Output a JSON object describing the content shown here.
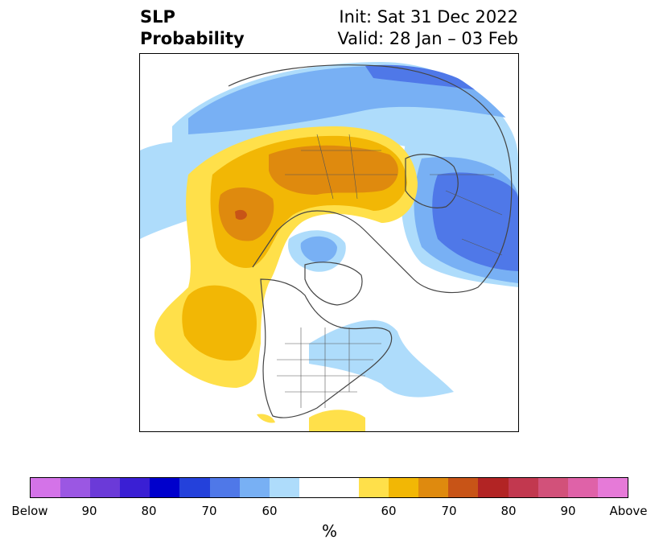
{
  "header": {
    "title_line1": "SLP",
    "title_line2": "Probability",
    "init": "Init: Sat 31 Dec 2022",
    "valid": "Valid: 28 Jan – 03 Feb"
  },
  "map": {
    "projection": "north-polar-stereographic",
    "features": [
      "coastlines",
      "country-borders",
      "state-borders"
    ]
  },
  "colorbar": {
    "colors": [
      "#d473e8",
      "#9b57e3",
      "#6b3ad8",
      "#3a1fd4",
      "#0000cc",
      "#2441db",
      "#4f78e8",
      "#78b0f4",
      "#aedcfb",
      "#ffffff",
      "#ffe04a",
      "#f2b705",
      "#df8a0e",
      "#c85417",
      "#b22424",
      "#c2384f",
      "#d2517a",
      "#df62a8",
      "#e67ad8"
    ],
    "tick_labels": [
      "Below",
      "90",
      "80",
      "70",
      "60",
      "60",
      "70",
      "80",
      "90",
      "Above"
    ],
    "unit": "%"
  },
  "legend_categories": {
    "below": "Below",
    "above": "Above"
  }
}
